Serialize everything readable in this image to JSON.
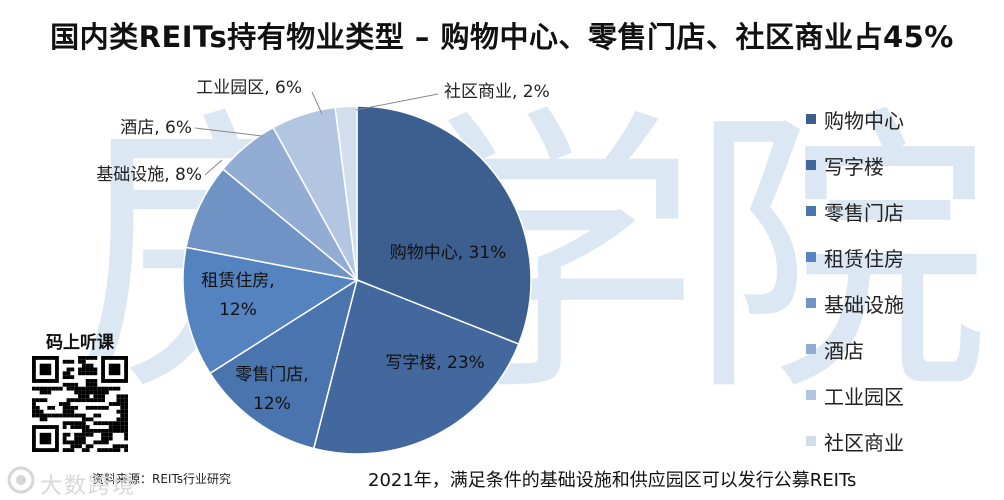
{
  "title": "国内类REITs持有物业类型 – 购物中心、零售门店、社区商业占45%",
  "watermark": [
    "房",
    "学",
    "院"
  ],
  "qr": {
    "title": "码上听课"
  },
  "source": "资料来源：REITs行业研究",
  "footer": "2021年，满足条件的基础设施和供应园区可以发行公募REITs",
  "corner_logo_text": "大数跨境",
  "chart_data": {
    "type": "pie",
    "title": "",
    "legend_position": "right",
    "slices": [
      {
        "label": "购物中心",
        "value": 31,
        "color": "#3d5f8f"
      },
      {
        "label": "写字楼",
        "value": 23,
        "color": "#43689d"
      },
      {
        "label": "零售门店",
        "value": 12,
        "color": "#4a74ad"
      },
      {
        "label": "租赁住房",
        "value": 12,
        "color": "#5583bf"
      },
      {
        "label": "基础设施",
        "value": 8,
        "color": "#7093c5"
      },
      {
        "label": "酒店",
        "value": 6,
        "color": "#92acd4"
      },
      {
        "label": "工业园区",
        "value": 6,
        "color": "#b2c5e1"
      },
      {
        "label": "社区商业",
        "value": 2,
        "color": "#d2ddee"
      }
    ]
  }
}
